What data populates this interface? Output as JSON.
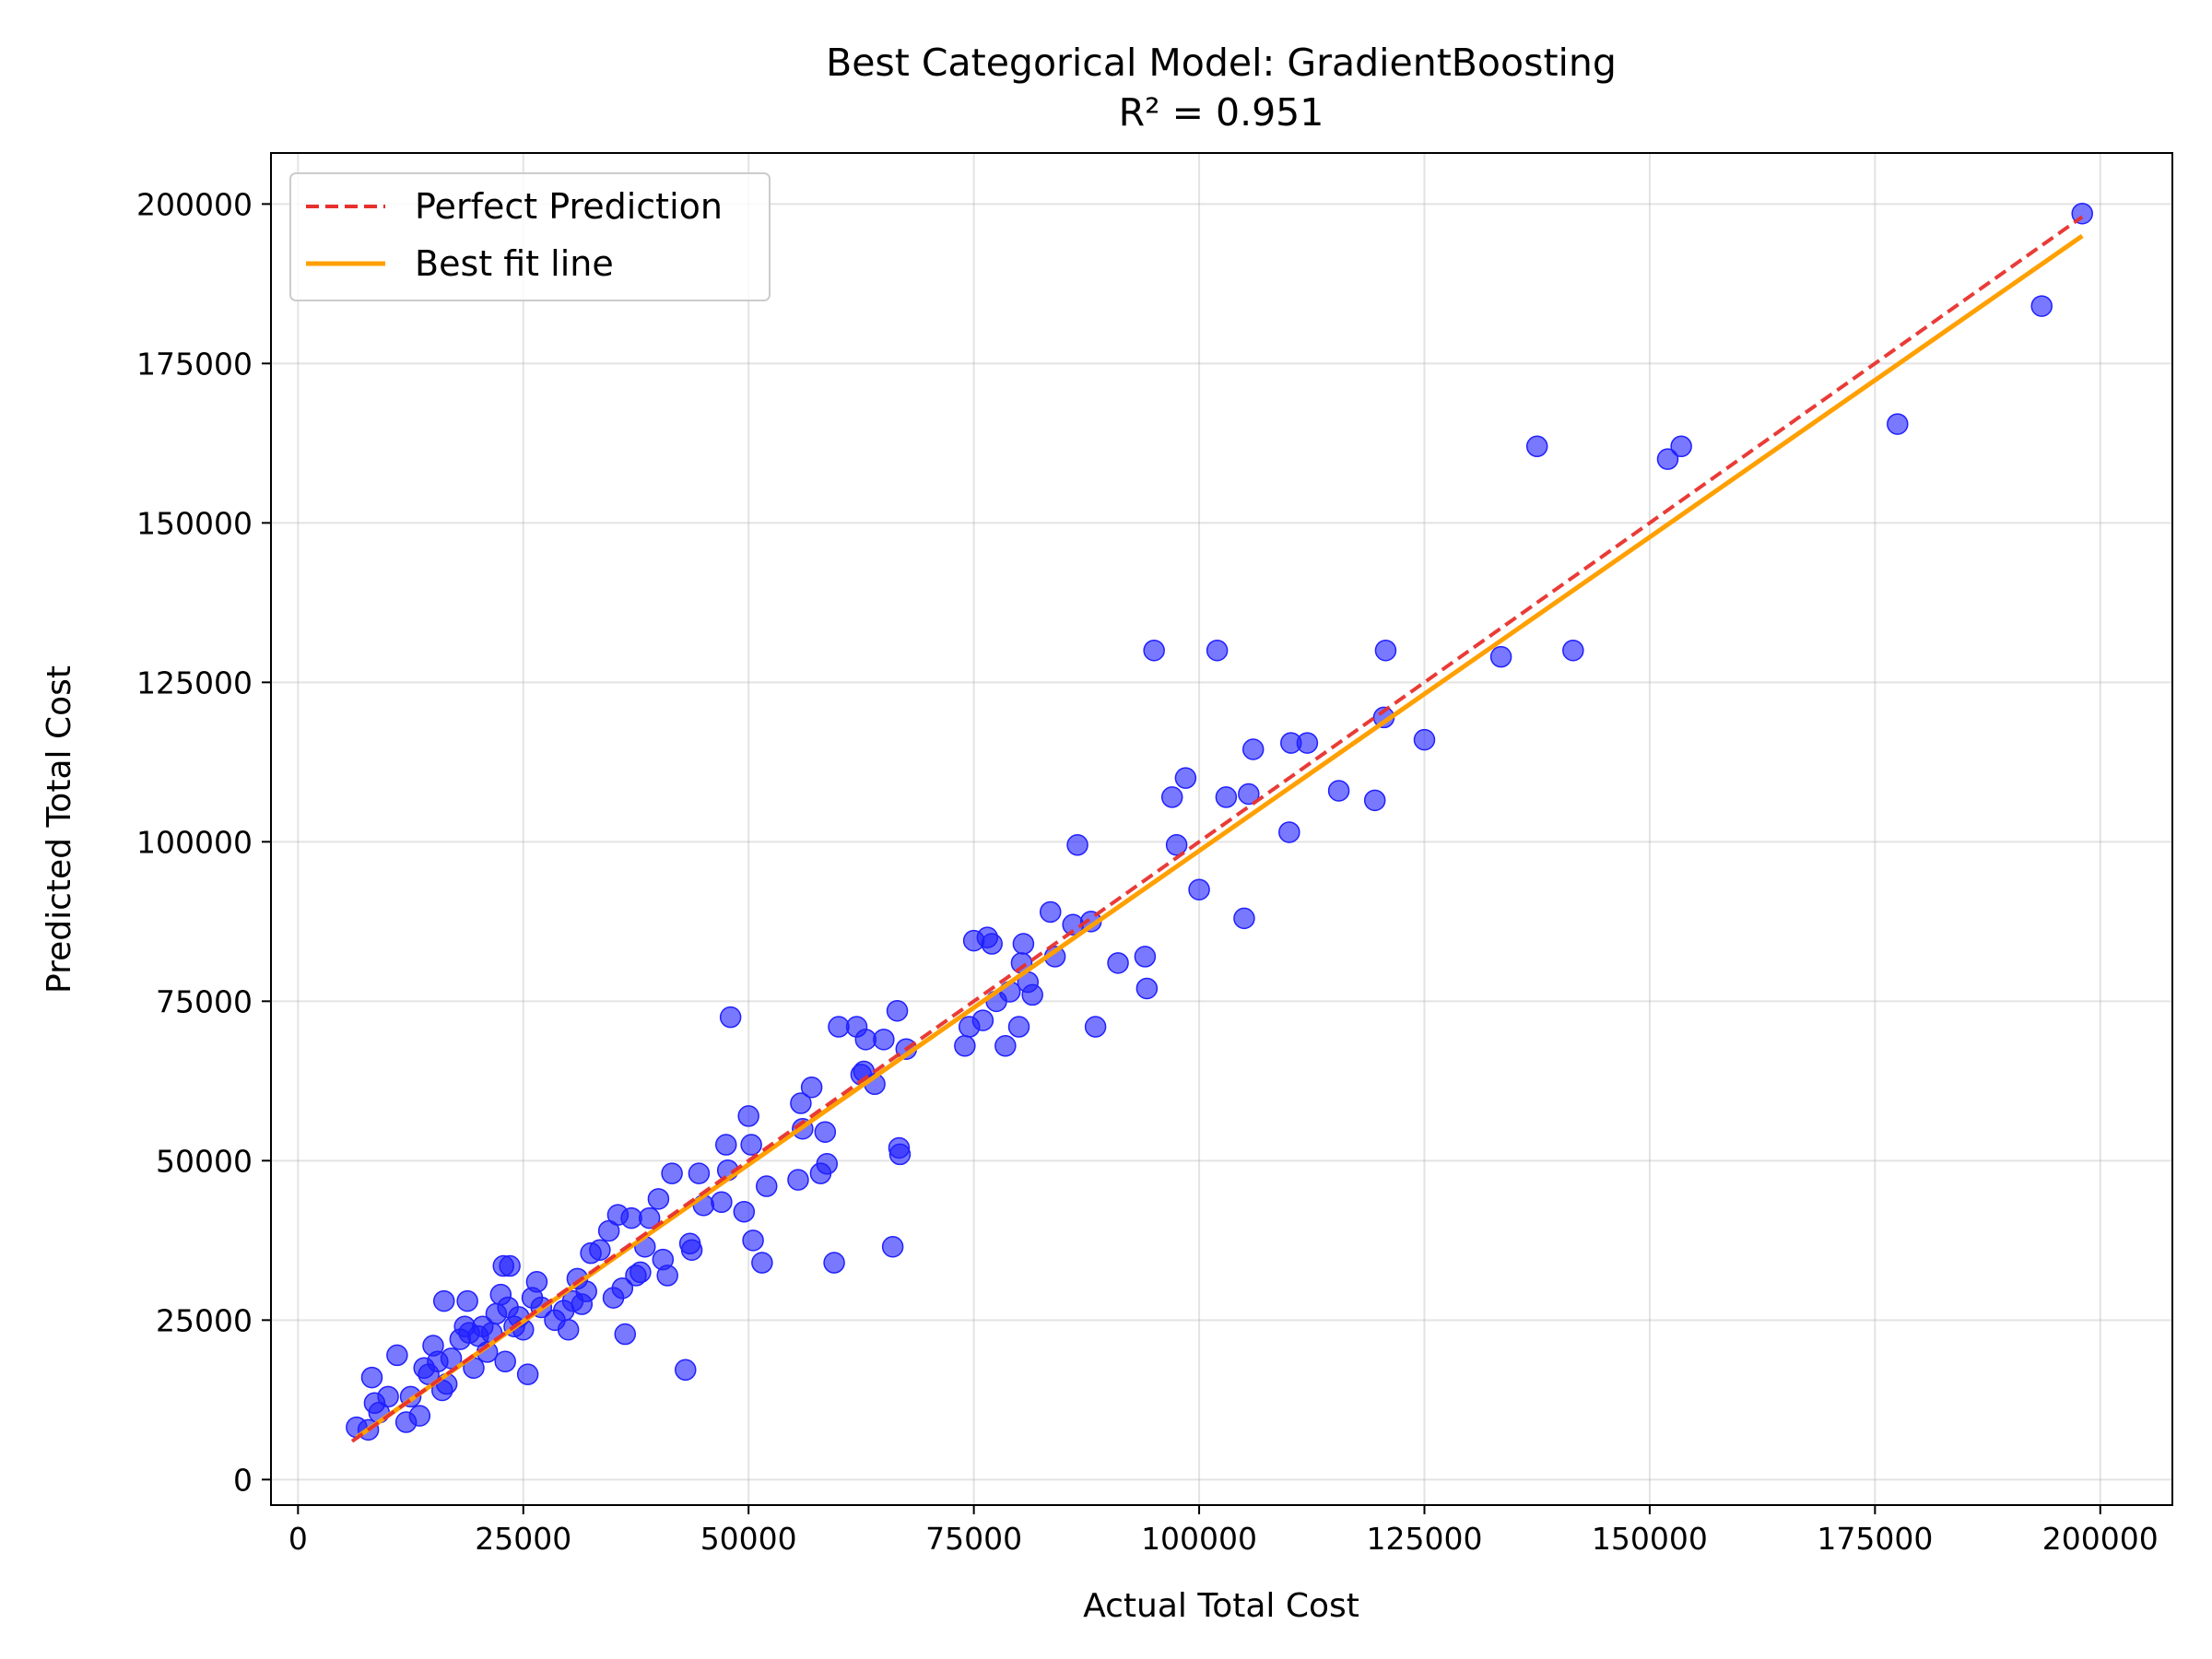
{
  "chart_data": {
    "type": "scatter",
    "title": "Best Categorical Model: GradientBoosting",
    "subtitle": "R² = 0.951",
    "xlabel": "Actual Total Cost",
    "ylabel": "Predicted Total Cost",
    "xlim": [
      -3000,
      208000
    ],
    "ylim": [
      -4000,
      208000
    ],
    "xticks": [
      0,
      25000,
      50000,
      75000,
      100000,
      125000,
      150000,
      175000,
      200000
    ],
    "yticks": [
      0,
      25000,
      50000,
      75000,
      100000,
      125000,
      150000,
      175000,
      200000
    ],
    "grid": true,
    "legend_position": "top-left",
    "legend": [
      {
        "label": "Perfect Prediction",
        "style": "dashed",
        "color": "#e8302c"
      },
      {
        "label": "Best fit line",
        "style": "solid",
        "color": "#ffa000"
      }
    ],
    "perfect_line": {
      "x": [
        6000,
        198000
      ],
      "y": [
        6000,
        198000
      ]
    },
    "fit_line": {
      "x": [
        6500,
        198000
      ],
      "y": [
        6600,
        195000
      ]
    },
    "points_color": "#2020ff",
    "points": [
      [
        6500,
        8200
      ],
      [
        7800,
        7800
      ],
      [
        8200,
        16000
      ],
      [
        8500,
        12000
      ],
      [
        9000,
        10500
      ],
      [
        10000,
        13000
      ],
      [
        11000,
        19500
      ],
      [
        12000,
        9000
      ],
      [
        12500,
        13000
      ],
      [
        13500,
        10000
      ],
      [
        14000,
        17500
      ],
      [
        14500,
        16500
      ],
      [
        15000,
        21000
      ],
      [
        15500,
        18500
      ],
      [
        16000,
        14000
      ],
      [
        16200,
        28000
      ],
      [
        16500,
        15000
      ],
      [
        17000,
        19000
      ],
      [
        18000,
        22000
      ],
      [
        18500,
        24000
      ],
      [
        18800,
        28000
      ],
      [
        19000,
        23000
      ],
      [
        19500,
        17500
      ],
      [
        20000,
        22500
      ],
      [
        20500,
        24000
      ],
      [
        21000,
        20000
      ],
      [
        21500,
        23000
      ],
      [
        22000,
        26000
      ],
      [
        22500,
        29000
      ],
      [
        22800,
        33500
      ],
      [
        23000,
        18500
      ],
      [
        23300,
        27000
      ],
      [
        23500,
        33500
      ],
      [
        24000,
        24000
      ],
      [
        24500,
        25500
      ],
      [
        25000,
        23500
      ],
      [
        25500,
        16500
      ],
      [
        26000,
        28500
      ],
      [
        26500,
        31000
      ],
      [
        27000,
        27000
      ],
      [
        28500,
        25000
      ],
      [
        29500,
        26500
      ],
      [
        30000,
        23500
      ],
      [
        30500,
        28000
      ],
      [
        31000,
        31500
      ],
      [
        31500,
        27500
      ],
      [
        32000,
        29500
      ],
      [
        32500,
        35500
      ],
      [
        33500,
        36000
      ],
      [
        34500,
        39000
      ],
      [
        35000,
        28500
      ],
      [
        35500,
        41500
      ],
      [
        36000,
        30000
      ],
      [
        36300,
        22800
      ],
      [
        37000,
        41000
      ],
      [
        37500,
        32000
      ],
      [
        38000,
        32500
      ],
      [
        38500,
        36500
      ],
      [
        39000,
        41000
      ],
      [
        40000,
        44000
      ],
      [
        40500,
        34500
      ],
      [
        41000,
        32000
      ],
      [
        41500,
        48000
      ],
      [
        43000,
        17200
      ],
      [
        43500,
        37000
      ],
      [
        43700,
        36000
      ],
      [
        44500,
        48000
      ],
      [
        45000,
        43000
      ],
      [
        47000,
        43500
      ],
      [
        47500,
        52500
      ],
      [
        47700,
        48500
      ],
      [
        48000,
        72500
      ],
      [
        49500,
        42000
      ],
      [
        50000,
        57000
      ],
      [
        50300,
        52500
      ],
      [
        50500,
        37500
      ],
      [
        51500,
        34000
      ],
      [
        52000,
        46000
      ],
      [
        55500,
        47000
      ],
      [
        55800,
        59000
      ],
      [
        56000,
        55000
      ],
      [
        57000,
        61500
      ],
      [
        58000,
        48000
      ],
      [
        58500,
        54500
      ],
      [
        58700,
        49500
      ],
      [
        59500,
        34000
      ],
      [
        60000,
        71000
      ],
      [
        62000,
        71000
      ],
      [
        62500,
        63500
      ],
      [
        62800,
        64000
      ],
      [
        63000,
        69000
      ],
      [
        64000,
        62000
      ],
      [
        65000,
        69000
      ],
      [
        66000,
        36500
      ],
      [
        66500,
        73500
      ],
      [
        66700,
        52000
      ],
      [
        66800,
        51000
      ],
      [
        67500,
        67500
      ],
      [
        74000,
        68000
      ],
      [
        74500,
        71000
      ],
      [
        75000,
        84500
      ],
      [
        76000,
        72000
      ],
      [
        76500,
        85000
      ],
      [
        77000,
        84000
      ],
      [
        77500,
        75000
      ],
      [
        78500,
        68000
      ],
      [
        79000,
        76500
      ],
      [
        80000,
        71000
      ],
      [
        80300,
        81000
      ],
      [
        80500,
        84000
      ],
      [
        81000,
        78000
      ],
      [
        81500,
        76000
      ],
      [
        83500,
        89000
      ],
      [
        84000,
        82000
      ],
      [
        86000,
        87000
      ],
      [
        86500,
        99500
      ],
      [
        88000,
        87500
      ],
      [
        88500,
        71000
      ],
      [
        91000,
        81000
      ],
      [
        94000,
        82000
      ],
      [
        94200,
        77000
      ],
      [
        95000,
        130000
      ],
      [
        97000,
        107000
      ],
      [
        97500,
        99500
      ],
      [
        98500,
        110000
      ],
      [
        100000,
        92500
      ],
      [
        102000,
        130000
      ],
      [
        103000,
        107000
      ],
      [
        105000,
        88000
      ],
      [
        105500,
        107500
      ],
      [
        106000,
        114500
      ],
      [
        110000,
        101500
      ],
      [
        110200,
        115500
      ],
      [
        112000,
        115500
      ],
      [
        115500,
        108000
      ],
      [
        119500,
        106500
      ],
      [
        120500,
        119500
      ],
      [
        120700,
        130000
      ],
      [
        125000,
        116000
      ],
      [
        133500,
        129000
      ],
      [
        137500,
        162000
      ],
      [
        141500,
        130000
      ],
      [
        152000,
        160000
      ],
      [
        153500,
        162000
      ],
      [
        177500,
        165500
      ],
      [
        193500,
        184000
      ],
      [
        198000,
        198500
      ]
    ]
  }
}
